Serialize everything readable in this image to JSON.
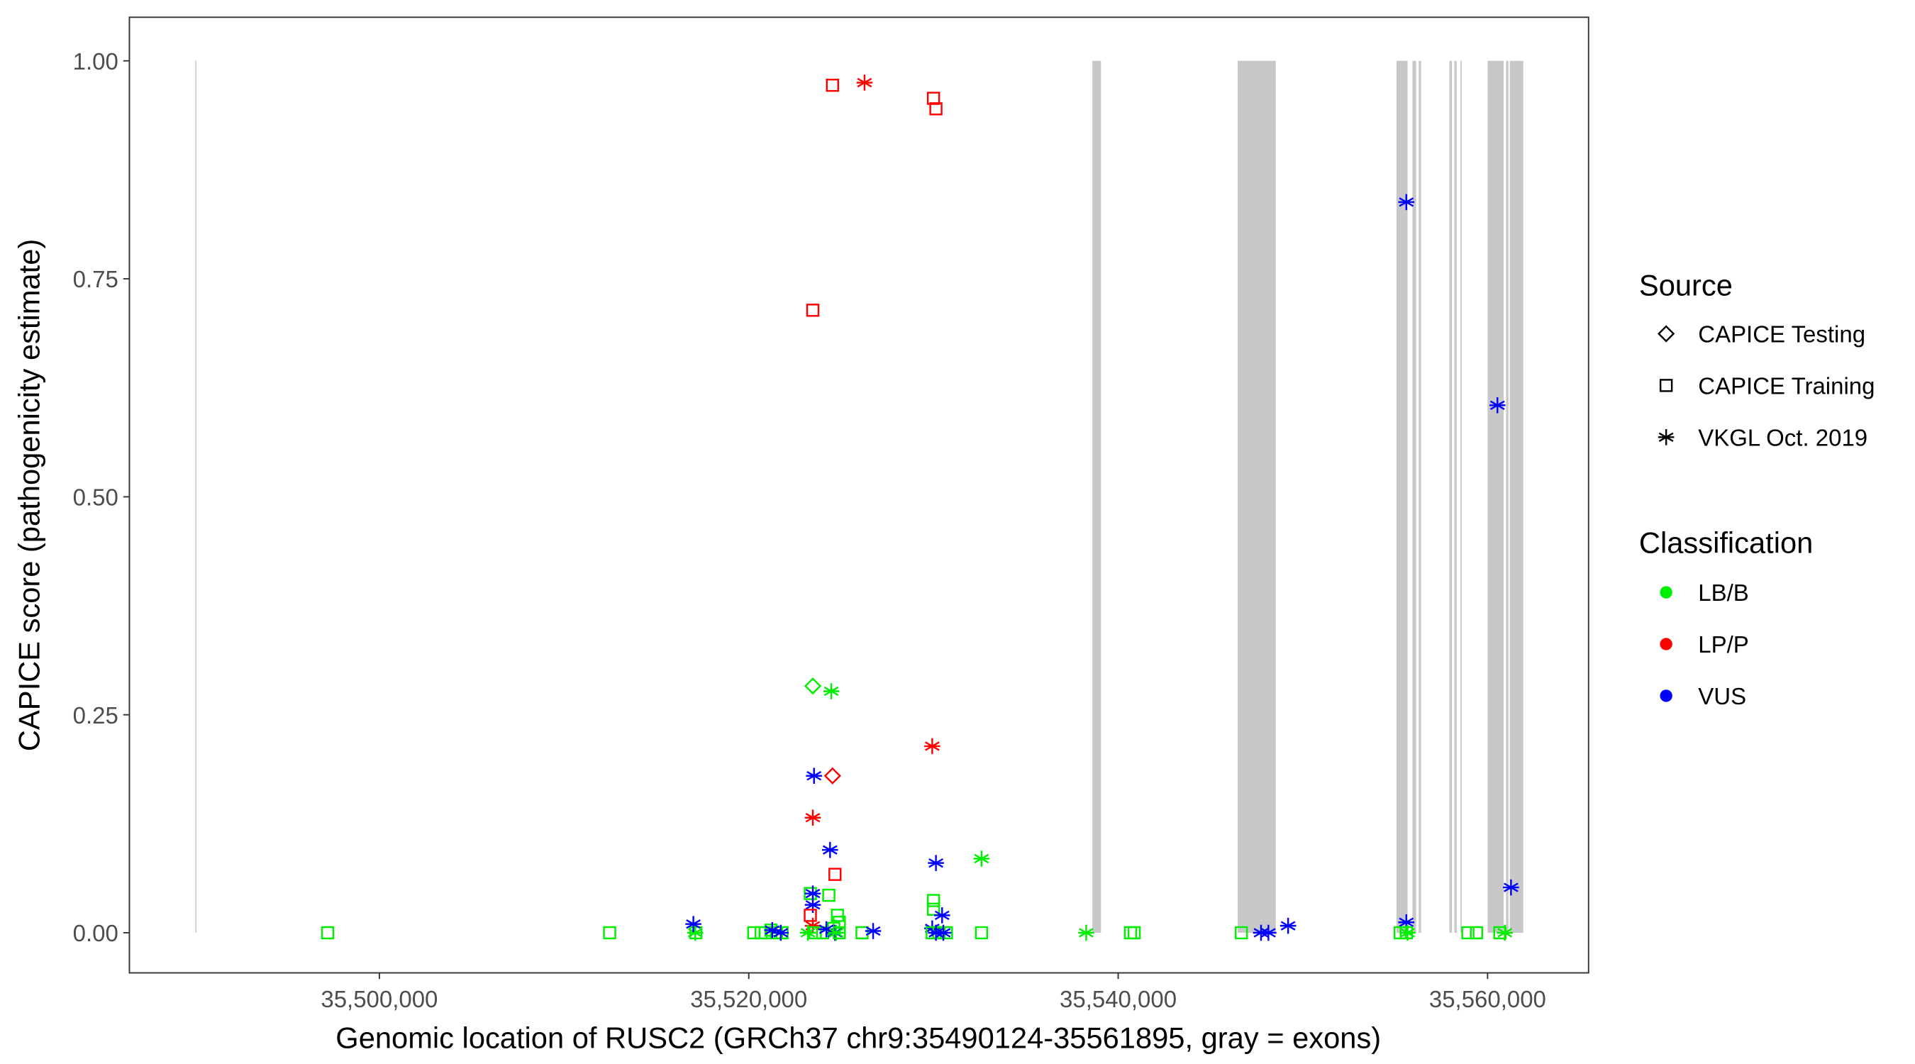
{
  "chart_data": {
    "type": "scatter",
    "xlabel": "Genomic location of RUSC2 (GRCh37 chr9:35490124-35561895, gray = exons)",
    "ylabel": "CAPICE score (pathogenicity estimate)",
    "xlim": [
      35486467,
      35565467
    ],
    "ylim": [
      -0.046,
      1.05
    ],
    "x_ticks": [
      35500000,
      35520000,
      35540000,
      35560000
    ],
    "x_tick_labels": [
      "35,500,000",
      "35,520,000",
      "35,540,000",
      "35,560,000"
    ],
    "y_ticks": [
      0,
      0.25,
      0.5,
      0.75,
      1.0
    ],
    "y_tick_labels": [
      "0.00",
      "0.25",
      "0.50",
      "0.75",
      "1.00"
    ],
    "grid": false,
    "exon_color": "#c8c8c8",
    "exons": [
      [
        35490040,
        35490100
      ],
      [
        35538600,
        35539067
      ],
      [
        35546467,
        35548533
      ],
      [
        35555067,
        35555667
      ],
      [
        35555933,
        35556133
      ],
      [
        35556270,
        35556400
      ],
      [
        35557930,
        35558070
      ],
      [
        35558200,
        35558330
      ],
      [
        35558530,
        35558600
      ],
      [
        35560000,
        35560867
      ],
      [
        35561000,
        35561130
      ],
      [
        35561200,
        35561933
      ]
    ],
    "legend": {
      "placement": "right",
      "source_title": "Source",
      "source_items": [
        {
          "label": "CAPICE Testing",
          "shape": "diamond"
        },
        {
          "label": "CAPICE Training",
          "shape": "square"
        },
        {
          "label": "VKGL Oct. 2019",
          "shape": "asterisk"
        }
      ],
      "class_title": "Classification",
      "class_items": [
        {
          "label": "LB/B",
          "color": "#00ee00"
        },
        {
          "label": "LP/P",
          "color": "#ff0000"
        },
        {
          "label": "VUS",
          "color": "#0000ff"
        }
      ]
    },
    "points": [
      [
        35497200,
        0,
        "square",
        "LB/B"
      ],
      [
        35512467,
        0,
        "square",
        "LB/B"
      ],
      [
        35517133,
        0,
        "square",
        "LB/B"
      ],
      [
        35517100,
        0,
        "asterisk",
        "LB/B"
      ],
      [
        35520270,
        0,
        "square",
        "LB/B"
      ],
      [
        35520670,
        0,
        "square",
        "LB/B"
      ],
      [
        35520900,
        0,
        "square",
        "LB/B"
      ],
      [
        35521200,
        0.003,
        "square",
        "LB/B"
      ],
      [
        35521500,
        0,
        "square",
        "LB/B"
      ],
      [
        35521800,
        0,
        "square",
        "LB/B"
      ],
      [
        35517000,
        0.01,
        "asterisk",
        "VUS"
      ],
      [
        35521270,
        0.003,
        "asterisk",
        "VUS"
      ],
      [
        35521730,
        0,
        "asterisk",
        "VUS"
      ],
      [
        35523467,
        0.283,
        "diamond",
        "LB/B"
      ],
      [
        35524467,
        0.277,
        "asterisk",
        "LB/B"
      ],
      [
        35523533,
        0.18,
        "asterisk",
        "VUS"
      ],
      [
        35524533,
        0.18,
        "diamond",
        "LP/P"
      ],
      [
        35523467,
        0.132,
        "asterisk",
        "LP/P"
      ],
      [
        35524400,
        0.095,
        "asterisk",
        "VUS"
      ],
      [
        35524667,
        0.067,
        "square",
        "LP/P"
      ],
      [
        35523333,
        0.045,
        "square",
        "LB/B"
      ],
      [
        35524333,
        0.043,
        "square",
        "LB/B"
      ],
      [
        35523467,
        0.045,
        "asterisk",
        "VUS"
      ],
      [
        35523467,
        0.032,
        "asterisk",
        "VUS"
      ],
      [
        35523333,
        0.02,
        "square",
        "LP/P"
      ],
      [
        35524800,
        0.02,
        "square",
        "LB/B"
      ],
      [
        35524900,
        0.012,
        "square",
        "LB/B"
      ],
      [
        35524600,
        0.005,
        "square",
        "LB/B"
      ],
      [
        35523467,
        0.008,
        "asterisk",
        "LP/P"
      ],
      [
        35523200,
        0,
        "asterisk",
        "LB/B"
      ],
      [
        35523600,
        0,
        "square",
        "LB/B"
      ],
      [
        35524000,
        0,
        "square",
        "LB/B"
      ],
      [
        35524200,
        0.004,
        "asterisk",
        "VUS"
      ],
      [
        35524667,
        0,
        "asterisk",
        "VUS"
      ],
      [
        35524733,
        0,
        "asterisk",
        "LB/B"
      ],
      [
        35524900,
        0,
        "square",
        "LB/B"
      ],
      [
        35526133,
        0,
        "square",
        "LB/B"
      ],
      [
        35526733,
        0.002,
        "asterisk",
        "VUS"
      ],
      [
        35524533,
        0.972,
        "square",
        "LP/P"
      ],
      [
        35526267,
        0.975,
        "asterisk",
        "LP/P"
      ],
      [
        35530000,
        0.957,
        "square",
        "LP/P"
      ],
      [
        35530133,
        0.945,
        "square",
        "LP/P"
      ],
      [
        35523467,
        0.714,
        "square",
        "LP/P"
      ],
      [
        35529933,
        0.214,
        "asterisk",
        "LP/P"
      ],
      [
        35530133,
        0.08,
        "asterisk",
        "VUS"
      ],
      [
        35530000,
        0.037,
        "square",
        "LB/B"
      ],
      [
        35530000,
        0.027,
        "square",
        "LB/B"
      ],
      [
        35530467,
        0.02,
        "asterisk",
        "VUS"
      ],
      [
        35529933,
        0.005,
        "asterisk",
        "VUS"
      ],
      [
        35529933,
        0,
        "square",
        "LB/B"
      ],
      [
        35530300,
        0,
        "square",
        "LB/B"
      ],
      [
        35530700,
        0,
        "square",
        "LB/B"
      ],
      [
        35530133,
        0,
        "asterisk",
        "VUS"
      ],
      [
        35530533,
        0,
        "asterisk",
        "VUS"
      ],
      [
        35532600,
        0,
        "square",
        "LB/B"
      ],
      [
        35532600,
        0.085,
        "asterisk",
        "LB/B"
      ],
      [
        35538267,
        0,
        "asterisk",
        "LB/B"
      ],
      [
        35540667,
        0,
        "square",
        "LB/B"
      ],
      [
        35540867,
        0,
        "square",
        "LB/B"
      ],
      [
        35546667,
        0,
        "square",
        "LB/B"
      ],
      [
        35547733,
        0,
        "asterisk",
        "VUS"
      ],
      [
        35548133,
        0,
        "asterisk",
        "VUS"
      ],
      [
        35549200,
        0.008,
        "asterisk",
        "VUS"
      ],
      [
        35555600,
        0.838,
        "asterisk",
        "VUS"
      ],
      [
        35555600,
        0.012,
        "asterisk",
        "VUS"
      ],
      [
        35555267,
        0,
        "square",
        "LB/B"
      ],
      [
        35555600,
        0,
        "square",
        "LB/B"
      ],
      [
        35555667,
        0,
        "asterisk",
        "LB/B"
      ],
      [
        35558933,
        0,
        "square",
        "LB/B"
      ],
      [
        35559400,
        0,
        "square",
        "LB/B"
      ],
      [
        35560667,
        0,
        "square",
        "LB/B"
      ],
      [
        35560933,
        0,
        "asterisk",
        "LB/B"
      ],
      [
        35560533,
        0.605,
        "asterisk",
        "VUS"
      ],
      [
        35561267,
        0.052,
        "asterisk",
        "VUS"
      ]
    ]
  }
}
